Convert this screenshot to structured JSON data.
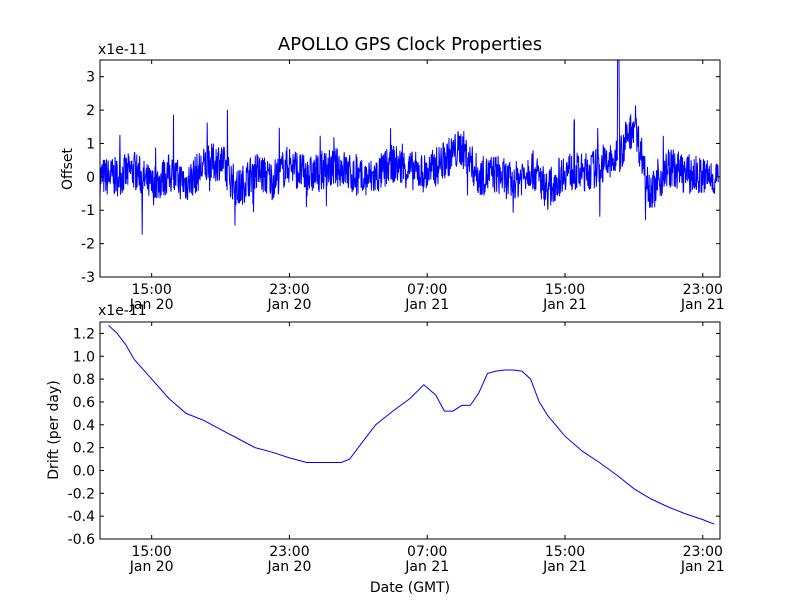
{
  "chart_data": [
    {
      "type": "line",
      "title": "APOLLO GPS Clock Properties",
      "ylabel": "Offset",
      "xlabel": "",
      "y_exponent_label": "x1e-11",
      "ylim": [
        -3,
        3.5
      ],
      "y_ticks": [
        -3,
        -2,
        -1,
        0,
        1,
        2,
        3
      ],
      "y_tick_labels": [
        "-3",
        "-2",
        "-1",
        "0",
        "1",
        "2",
        "3"
      ],
      "x_range_hours": [
        12.0,
        24.0
      ],
      "x_ticks": [
        {
          "time": "15:00",
          "date": "Jan 20"
        },
        {
          "time": "23:00",
          "date": "Jan 20"
        },
        {
          "time": "07:00",
          "date": "Jan 21"
        },
        {
          "time": "15:00",
          "date": "Jan 21"
        },
        {
          "time": "23:00",
          "date": "Jan 21"
        }
      ],
      "color": "#0000ff",
      "grid": false,
      "series_keypoints": {
        "x": [
          "Jan 20 13:00",
          "Jan 20 14:00",
          "Jan 20 15:00",
          "Jan 20 16:00",
          "Jan 20 17:00",
          "Jan 20 18:00",
          "Jan 20 19:00",
          "Jan 20 20:00",
          "Jan 20 21:00",
          "Jan 20 22:00",
          "Jan 20 23:00",
          "Jan 21 00:00",
          "Jan 21 01:00",
          "Jan 21 02:00",
          "Jan 21 03:00",
          "Jan 21 04:00",
          "Jan 21 05:00",
          "Jan 21 06:00",
          "Jan 21 07:00",
          "Jan 21 08:00",
          "Jan 21 09:00",
          "Jan 21 10:00",
          "Jan 21 11:00",
          "Jan 21 12:00",
          "Jan 21 13:00",
          "Jan 21 14:00",
          "Jan 21 15:00",
          "Jan 21 16:00",
          "Jan 21 17:00",
          "Jan 21 18:00",
          "Jan 21 19:00",
          "Jan 21 20:00",
          "Jan 21 21:00",
          "Jan 21 22:00",
          "Jan 21 23:00"
        ],
        "y": [
          0.0,
          0.2,
          -0.3,
          0.1,
          -0.2,
          0.3,
          0.5,
          -0.4,
          0.2,
          -0.1,
          0.4,
          0.0,
          0.2,
          0.3,
          -0.1,
          0.0,
          0.4,
          0.2,
          0.1,
          0.5,
          0.9,
          0.0,
          0.1,
          -0.2,
          0.3,
          -0.4,
          0.2,
          0.1,
          0.3,
          0.5,
          1.6,
          -0.5,
          0.3,
          0.1,
          0.0
        ]
      }
    },
    {
      "type": "line",
      "title": "",
      "ylabel": "Drift (per day)",
      "xlabel": "Date (GMT)",
      "y_exponent_label": "x1e-11",
      "ylim": [
        -0.6,
        1.3
      ],
      "y_ticks": [
        -0.6,
        -0.4,
        -0.2,
        0.0,
        0.2,
        0.4,
        0.6,
        0.8,
        1.0,
        1.2
      ],
      "y_tick_labels": [
        "-0.6",
        "-0.4",
        "-0.2",
        "0.0",
        "0.2",
        "0.4",
        "0.6",
        "0.8",
        "1.0",
        "1.2"
      ],
      "x_ticks": [
        {
          "time": "15:00",
          "date": "Jan 20"
        },
        {
          "time": "23:00",
          "date": "Jan 20"
        },
        {
          "time": "07:00",
          "date": "Jan 21"
        },
        {
          "time": "15:00",
          "date": "Jan 21"
        },
        {
          "time": "23:00",
          "date": "Jan 21"
        }
      ],
      "color": "#0000ff",
      "grid": false,
      "series": [
        {
          "x": [
            "Jan 20 12:30",
            "Jan 20 13:00",
            "Jan 20 13:30",
            "Jan 20 14:00",
            "Jan 20 15:00",
            "Jan 20 16:00",
            "Jan 20 17:00",
            "Jan 20 18:00",
            "Jan 20 19:00",
            "Jan 20 20:00",
            "Jan 20 21:00",
            "Jan 20 22:00",
            "Jan 20 23:00",
            "Jan 21 00:00",
            "Jan 21 01:00",
            "Jan 21 02:00",
            "Jan 21 02:30",
            "Jan 21 03:00",
            "Jan 21 03:30",
            "Jan 21 04:00",
            "Jan 21 05:00",
            "Jan 21 06:00",
            "Jan 21 06:48",
            "Jan 21 07:30",
            "Jan 21 08:00",
            "Jan 21 08:30",
            "Jan 21 09:00",
            "Jan 21 09:30",
            "Jan 21 10:00",
            "Jan 21 10:30",
            "Jan 21 11:00",
            "Jan 21 11:30",
            "Jan 21 12:00",
            "Jan 21 12:30",
            "Jan 21 13:00",
            "Jan 21 13:30",
            "Jan 21 14:00",
            "Jan 21 15:00",
            "Jan 21 16:00",
            "Jan 21 17:00",
            "Jan 21 18:00",
            "Jan 21 19:00",
            "Jan 21 20:00",
            "Jan 21 21:00",
            "Jan 21 22:00",
            "Jan 21 23:00",
            "Jan 21 23:40"
          ],
          "y": [
            1.27,
            1.2,
            1.1,
            0.97,
            0.8,
            0.63,
            0.5,
            0.44,
            0.36,
            0.28,
            0.2,
            0.16,
            0.11,
            0.07,
            0.07,
            0.07,
            0.1,
            0.2,
            0.3,
            0.4,
            0.52,
            0.63,
            0.75,
            0.66,
            0.52,
            0.52,
            0.57,
            0.57,
            0.68,
            0.85,
            0.87,
            0.88,
            0.88,
            0.87,
            0.8,
            0.6,
            0.48,
            0.3,
            0.17,
            0.07,
            -0.04,
            -0.16,
            -0.25,
            -0.32,
            -0.38,
            -0.43,
            -0.47
          ]
        }
      ]
    }
  ]
}
